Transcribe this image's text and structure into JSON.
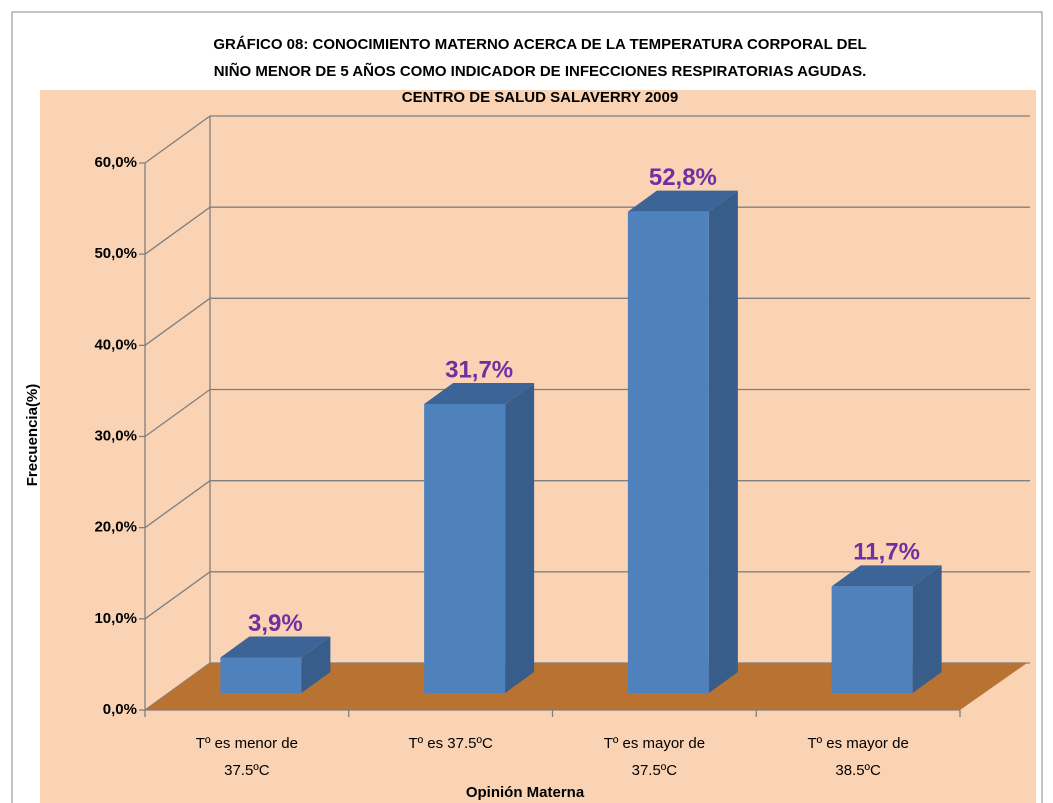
{
  "chart_data": {
    "type": "bar3d",
    "title": [
      "GRÁFICO 08: CONOCIMIENTO MATERNO ACERCA DE LA TEMPERATURA CORPORAL DEL",
      "NIÑO MENOR DE 5 AÑOS COMO INDICADOR DE INFECCIONES RESPIRATORIAS AGUDAS.",
      "CENTRO  DE SALUD SALAVERRY 2009"
    ],
    "x_label": "Opinión Materna",
    "y_label": "Frecuencia(%)",
    "categories": [
      "Tº es menor de\n37.5ºC",
      "Tº es 37.5ºC",
      "Tº es mayor de\n37.5ºC",
      "Tº es mayor de\n38.5ºC"
    ],
    "values": [
      3.9,
      31.7,
      52.8,
      11.7
    ],
    "value_labels": [
      "3,9%",
      "31,7%",
      "52,8%",
      "11,7%"
    ],
    "color": "#4f81bd",
    "label_color": "#7030a0",
    "floor_color": "#b87333",
    "background": "#fad3b4",
    "ylim": [
      0,
      60
    ],
    "yticks": [
      {
        "value": 0,
        "label": "0,0%"
      },
      {
        "value": 10,
        "label": "10,0%"
      },
      {
        "value": 20,
        "label": "20,0%"
      },
      {
        "value": 30,
        "label": "30,0%"
      },
      {
        "value": 40,
        "label": "40,0%"
      },
      {
        "value": 50,
        "label": "50,0%"
      },
      {
        "value": 60,
        "label": "60,0%"
      }
    ],
    "grid": true
  }
}
